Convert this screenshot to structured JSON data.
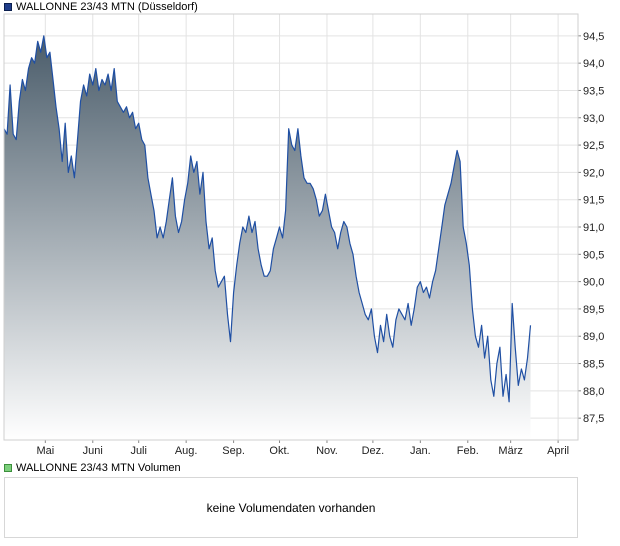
{
  "price_legend": "WALLONNE 23/43 MTN (Düsseldorf)",
  "volume_legend": "WALLONNE 23/43 MTN Volumen",
  "no_volume_text": "keine Volumendaten vorhanden",
  "colors": {
    "line": "#1f4fa3",
    "fill_top": "#4a5c6a",
    "fill_bottom": "#ffffff",
    "grid": "#e3e3e3",
    "frame": "#cfcfcf"
  },
  "chart_data": {
    "type": "area",
    "ylim": [
      87.1,
      94.9
    ],
    "yticks": [
      87.5,
      88.0,
      88.5,
      89.0,
      89.5,
      90.0,
      90.5,
      91.0,
      91.5,
      92.0,
      92.5,
      93.0,
      93.5,
      94.0,
      94.5
    ],
    "ytick_labels": [
      "87,5",
      "88,0",
      "88,5",
      "89,0",
      "89,5",
      "90,0",
      "90,5",
      "91,0",
      "91,5",
      "92,0",
      "92,5",
      "93,0",
      "93,5",
      "94,0",
      "94,5"
    ],
    "xticks": [
      "2024-05-01",
      "2024-06-01",
      "2024-07-01",
      "2024-08-01",
      "2024-09-01",
      "2024-10-01",
      "2024-11-01",
      "2024-12-01",
      "2025-01-01",
      "2025-02-01",
      "2025-03-01",
      "2025-04-01"
    ],
    "xtick_labels": [
      "Mai",
      "Juni",
      "Juli",
      "Aug.",
      "Sep.",
      "Okt.",
      "Nov.",
      "Dez.",
      "Jan.",
      "Feb.",
      "März",
      "April"
    ],
    "x_start": "2024-04-04",
    "x_end": "2025-04-14",
    "grid": true,
    "series": [
      {
        "values": [
          [
            "2024-04-04",
            92.8
          ],
          [
            "2024-04-06",
            92.7
          ],
          [
            "2024-04-08",
            93.6
          ],
          [
            "2024-04-10",
            92.7
          ],
          [
            "2024-04-12",
            92.6
          ],
          [
            "2024-04-14",
            93.3
          ],
          [
            "2024-04-16",
            93.7
          ],
          [
            "2024-04-18",
            93.5
          ],
          [
            "2024-04-20",
            93.9
          ],
          [
            "2024-04-22",
            94.1
          ],
          [
            "2024-04-24",
            94.0
          ],
          [
            "2024-04-26",
            94.4
          ],
          [
            "2024-04-28",
            94.2
          ],
          [
            "2024-04-30",
            94.5
          ],
          [
            "2024-05-02",
            94.1
          ],
          [
            "2024-05-04",
            94.2
          ],
          [
            "2024-05-06",
            93.7
          ],
          [
            "2024-05-08",
            93.2
          ],
          [
            "2024-05-10",
            92.8
          ],
          [
            "2024-05-12",
            92.2
          ],
          [
            "2024-05-14",
            92.9
          ],
          [
            "2024-05-16",
            92.0
          ],
          [
            "2024-05-18",
            92.3
          ],
          [
            "2024-05-20",
            91.9
          ],
          [
            "2024-05-22",
            92.6
          ],
          [
            "2024-05-24",
            93.3
          ],
          [
            "2024-05-26",
            93.6
          ],
          [
            "2024-05-28",
            93.4
          ],
          [
            "2024-05-30",
            93.8
          ],
          [
            "2024-06-01",
            93.6
          ],
          [
            "2024-06-03",
            93.9
          ],
          [
            "2024-06-05",
            93.5
          ],
          [
            "2024-06-07",
            93.7
          ],
          [
            "2024-06-09",
            93.6
          ],
          [
            "2024-06-11",
            93.8
          ],
          [
            "2024-06-13",
            93.5
          ],
          [
            "2024-06-15",
            93.9
          ],
          [
            "2024-06-17",
            93.3
          ],
          [
            "2024-06-19",
            93.2
          ],
          [
            "2024-06-21",
            93.1
          ],
          [
            "2024-06-23",
            93.2
          ],
          [
            "2024-06-25",
            93.0
          ],
          [
            "2024-06-27",
            93.1
          ],
          [
            "2024-06-29",
            92.8
          ],
          [
            "2024-07-01",
            92.9
          ],
          [
            "2024-07-03",
            92.6
          ],
          [
            "2024-07-05",
            92.5
          ],
          [
            "2024-07-07",
            91.9
          ],
          [
            "2024-07-09",
            91.6
          ],
          [
            "2024-07-11",
            91.3
          ],
          [
            "2024-07-13",
            90.8
          ],
          [
            "2024-07-15",
            91.0
          ],
          [
            "2024-07-17",
            90.8
          ],
          [
            "2024-07-19",
            91.1
          ],
          [
            "2024-07-21",
            91.5
          ],
          [
            "2024-07-23",
            91.9
          ],
          [
            "2024-07-25",
            91.2
          ],
          [
            "2024-07-27",
            90.9
          ],
          [
            "2024-07-29",
            91.1
          ],
          [
            "2024-07-31",
            91.5
          ],
          [
            "2024-08-02",
            91.8
          ],
          [
            "2024-08-04",
            92.3
          ],
          [
            "2024-08-06",
            92.0
          ],
          [
            "2024-08-08",
            92.2
          ],
          [
            "2024-08-10",
            91.6
          ],
          [
            "2024-08-12",
            92.0
          ],
          [
            "2024-08-14",
            91.1
          ],
          [
            "2024-08-16",
            90.6
          ],
          [
            "2024-08-18",
            90.8
          ],
          [
            "2024-08-20",
            90.2
          ],
          [
            "2024-08-22",
            89.9
          ],
          [
            "2024-08-24",
            90.0
          ],
          [
            "2024-08-26",
            90.1
          ],
          [
            "2024-08-28",
            89.4
          ],
          [
            "2024-08-30",
            88.9
          ],
          [
            "2024-09-01",
            89.8
          ],
          [
            "2024-09-03",
            90.3
          ],
          [
            "2024-09-05",
            90.7
          ],
          [
            "2024-09-07",
            91.0
          ],
          [
            "2024-09-09",
            90.9
          ],
          [
            "2024-09-11",
            91.2
          ],
          [
            "2024-09-13",
            90.9
          ],
          [
            "2024-09-15",
            91.1
          ],
          [
            "2024-09-17",
            90.6
          ],
          [
            "2024-09-19",
            90.3
          ],
          [
            "2024-09-21",
            90.1
          ],
          [
            "2024-09-23",
            90.1
          ],
          [
            "2024-09-25",
            90.2
          ],
          [
            "2024-09-27",
            90.6
          ],
          [
            "2024-09-29",
            90.8
          ],
          [
            "2024-10-01",
            91.0
          ],
          [
            "2024-10-03",
            90.8
          ],
          [
            "2024-10-05",
            91.3
          ],
          [
            "2024-10-07",
            92.8
          ],
          [
            "2024-10-09",
            92.5
          ],
          [
            "2024-10-11",
            92.4
          ],
          [
            "2024-10-13",
            92.8
          ],
          [
            "2024-10-15",
            92.3
          ],
          [
            "2024-10-17",
            91.9
          ],
          [
            "2024-10-19",
            91.8
          ],
          [
            "2024-10-21",
            91.8
          ],
          [
            "2024-10-23",
            91.7
          ],
          [
            "2024-10-25",
            91.5
          ],
          [
            "2024-10-27",
            91.2
          ],
          [
            "2024-10-29",
            91.3
          ],
          [
            "2024-10-31",
            91.6
          ],
          [
            "2024-11-02",
            91.3
          ],
          [
            "2024-11-04",
            91.0
          ],
          [
            "2024-11-06",
            90.9
          ],
          [
            "2024-11-08",
            90.6
          ],
          [
            "2024-11-10",
            90.9
          ],
          [
            "2024-11-12",
            91.1
          ],
          [
            "2024-11-14",
            91.0
          ],
          [
            "2024-11-16",
            90.7
          ],
          [
            "2024-11-18",
            90.5
          ],
          [
            "2024-11-20",
            90.1
          ],
          [
            "2024-11-22",
            89.8
          ],
          [
            "2024-11-24",
            89.6
          ],
          [
            "2024-11-26",
            89.4
          ],
          [
            "2024-11-28",
            89.3
          ],
          [
            "2024-11-30",
            89.5
          ],
          [
            "2024-12-02",
            89.0
          ],
          [
            "2024-12-04",
            88.7
          ],
          [
            "2024-12-06",
            89.2
          ],
          [
            "2024-12-08",
            88.9
          ],
          [
            "2024-12-10",
            89.4
          ],
          [
            "2024-12-12",
            89.0
          ],
          [
            "2024-12-14",
            88.8
          ],
          [
            "2024-12-16",
            89.3
          ],
          [
            "2024-12-18",
            89.5
          ],
          [
            "2024-12-20",
            89.4
          ],
          [
            "2024-12-22",
            89.3
          ],
          [
            "2024-12-24",
            89.6
          ],
          [
            "2024-12-26",
            89.2
          ],
          [
            "2024-12-28",
            89.5
          ],
          [
            "2024-12-30",
            89.9
          ],
          [
            "2025-01-01",
            90.0
          ],
          [
            "2025-01-03",
            89.8
          ],
          [
            "2025-01-05",
            89.9
          ],
          [
            "2025-01-07",
            89.7
          ],
          [
            "2025-01-09",
            90.0
          ],
          [
            "2025-01-11",
            90.2
          ],
          [
            "2025-01-13",
            90.6
          ],
          [
            "2025-01-15",
            91.0
          ],
          [
            "2025-01-17",
            91.4
          ],
          [
            "2025-01-19",
            91.6
          ],
          [
            "2025-01-21",
            91.8
          ],
          [
            "2025-01-23",
            92.1
          ],
          [
            "2025-01-25",
            92.4
          ],
          [
            "2025-01-27",
            92.2
          ],
          [
            "2025-01-29",
            91.0
          ],
          [
            "2025-01-31",
            90.7
          ],
          [
            "2025-02-02",
            90.3
          ],
          [
            "2025-02-04",
            89.5
          ],
          [
            "2025-02-06",
            89.0
          ],
          [
            "2025-02-08",
            88.8
          ],
          [
            "2025-02-10",
            89.2
          ],
          [
            "2025-02-12",
            88.6
          ],
          [
            "2025-02-14",
            89.0
          ],
          [
            "2025-02-16",
            88.2
          ],
          [
            "2025-02-18",
            87.9
          ],
          [
            "2025-02-20",
            88.5
          ],
          [
            "2025-02-22",
            88.8
          ],
          [
            "2025-02-24",
            87.9
          ],
          [
            "2025-02-26",
            88.3
          ],
          [
            "2025-02-28",
            87.8
          ],
          [
            "2025-03-02",
            89.6
          ],
          [
            "2025-03-04",
            88.8
          ],
          [
            "2025-03-06",
            88.1
          ],
          [
            "2025-03-08",
            88.4
          ],
          [
            "2025-03-10",
            88.2
          ],
          [
            "2025-03-12",
            88.6
          ],
          [
            "2025-03-14",
            89.2
          ]
        ]
      }
    ]
  }
}
